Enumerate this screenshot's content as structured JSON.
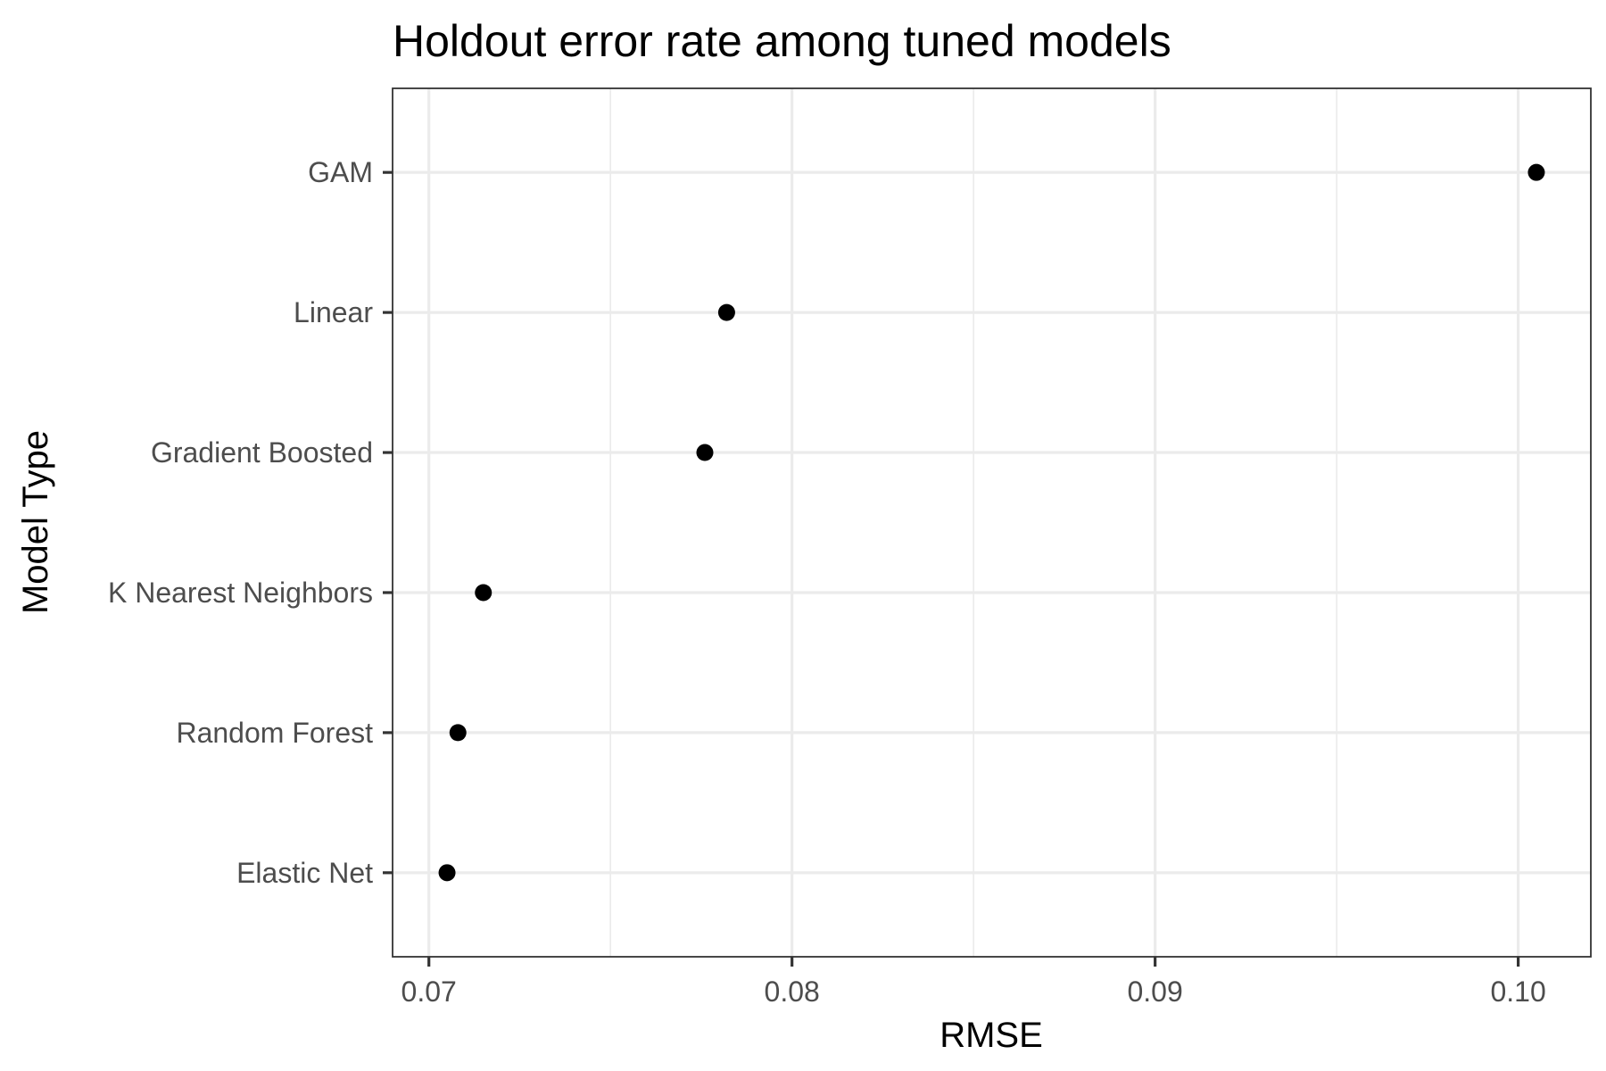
{
  "chart_data": {
    "type": "scatter",
    "title": "Holdout error rate among tuned models",
    "xlabel": "RMSE",
    "ylabel": "Model Type",
    "xlim": [
      0.069,
      0.102
    ],
    "x_ticks": [
      0.07,
      0.08,
      0.09,
      0.1
    ],
    "x_tick_labels": [
      "0.07",
      "0.08",
      "0.09",
      "0.10"
    ],
    "categories": [
      "GAM",
      "Linear",
      "Gradient Boosted",
      "K Nearest Neighbors",
      "Random Forest",
      "Elastic Net"
    ],
    "values": [
      0.1005,
      0.0782,
      0.0776,
      0.0715,
      0.0708,
      0.0705
    ],
    "grid": true,
    "legend": "none",
    "colors": {
      "point": "#000000",
      "grid": "#ebebeb",
      "border": "#333333",
      "tick_label": "#4d4d4d"
    }
  }
}
